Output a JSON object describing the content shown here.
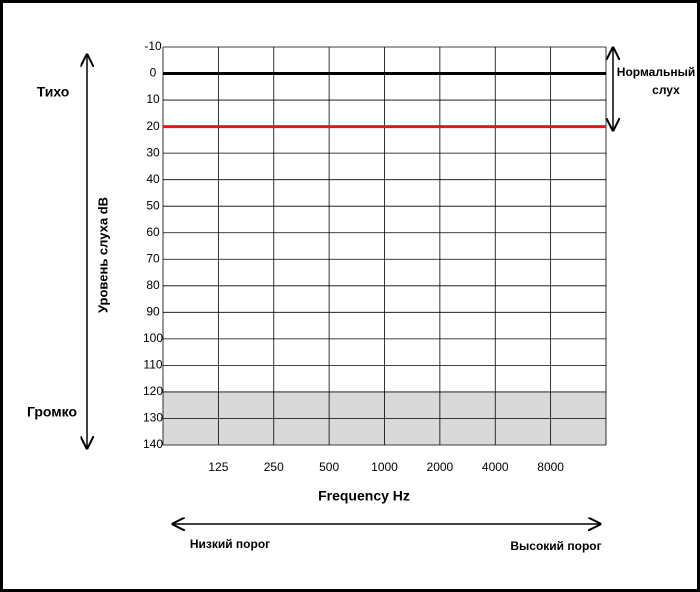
{
  "chart_data": {
    "type": "audiogram",
    "categories": [
      "125",
      "250",
      "500",
      "1000",
      "2000",
      "4000",
      "8000"
    ],
    "ylim": [
      -10,
      140
    ],
    "yticks": [
      -10,
      0,
      10,
      20,
      30,
      40,
      50,
      60,
      70,
      80,
      90,
      100,
      110,
      120,
      130,
      140
    ],
    "y_inverted": true,
    "grid": true,
    "shaded_range": [
      120,
      140
    ],
    "shade_color": "#d9d9d9",
    "reference_lines": [
      {
        "value": 0,
        "color": "#000000"
      },
      {
        "value": 20,
        "color": "#e8141b"
      }
    ],
    "xlabel": "Frequency Hz",
    "ylabel": "Уровень слуха dB",
    "top_label": "Тихо",
    "bottom_label": "Громко",
    "range_annotation": [
      "Нормальный",
      "слух"
    ],
    "left_label": "Низкий порог",
    "right_label": "Высокий порог"
  }
}
